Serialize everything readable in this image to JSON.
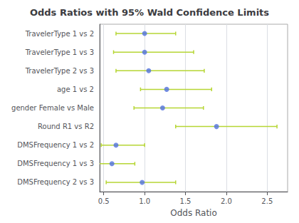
{
  "chart_data": {
    "type": "forest",
    "title": "Odds Ratios with 95% Wald Confidence Limits",
    "xlabel": "Odds Ratio",
    "categories": [
      "TravelerType 1 vs 2",
      "TravelerType 1 vs 3",
      "TravelerType 2 vs 3",
      "age 1 vs 2",
      "gender Female vs Male",
      "Round R1 vs R2",
      "DMSFrequency 1 vs 2",
      "DMSFrequency 1 vs 3",
      "DMSFrequency 2 vs 3"
    ],
    "values": [
      1.0,
      1.0,
      1.05,
      1.27,
      1.22,
      1.88,
      0.65,
      0.6,
      0.97
    ],
    "ci_lower": [
      0.65,
      0.62,
      0.65,
      0.95,
      0.87,
      1.38,
      0.47,
      0.44,
      0.53
    ],
    "ci_upper": [
      1.38,
      1.6,
      1.73,
      1.82,
      1.72,
      2.62,
      1.0,
      0.88,
      1.38
    ],
    "xlim": [
      0.45,
      2.75
    ],
    "xticks": [
      0.5,
      {
        "value": 1,
        "label": "1.0"
      },
      1.5,
      {
        "value": 2,
        "label": "2.0"
      },
      2.5
    ],
    "grid": true
  }
}
